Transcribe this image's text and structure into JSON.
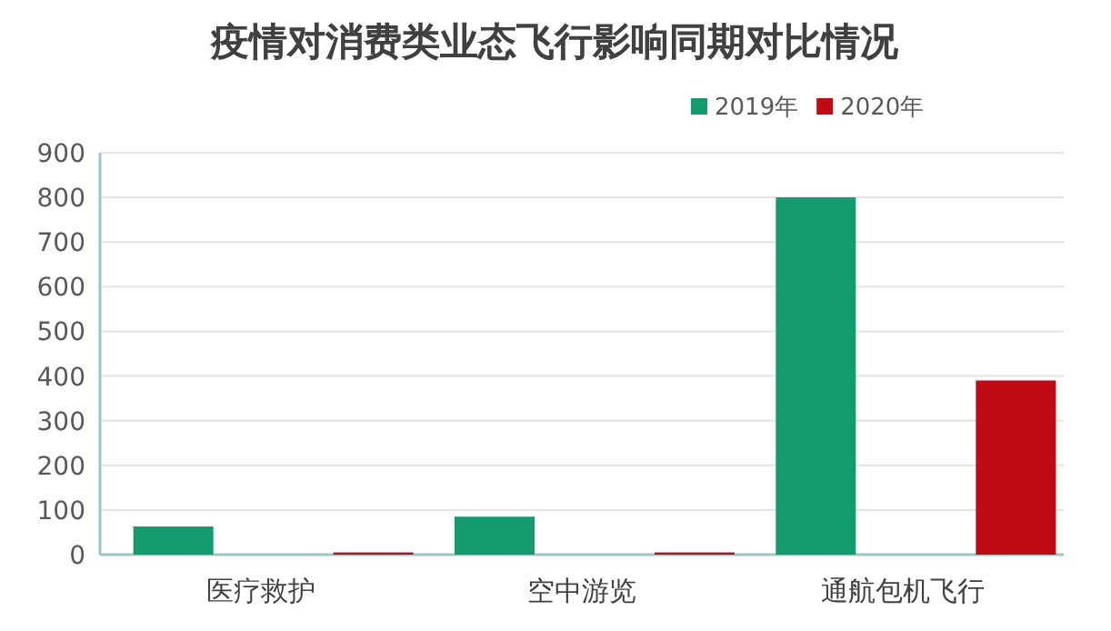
{
  "chart_data": {
    "type": "bar",
    "title": "疫情对消费类业态飞行影响同期对比情况",
    "categories": [
      "医疗救护",
      "空中游览",
      "通航包机飞行"
    ],
    "series": [
      {
        "name": "2019年",
        "color": "#139a6e",
        "values": [
          63,
          85,
          800
        ]
      },
      {
        "name": "2020年",
        "color": "#c00a14",
        "values": [
          5,
          5,
          390
        ]
      }
    ],
    "ylim": [
      0,
      900
    ],
    "yticks": [
      0,
      100,
      200,
      300,
      400,
      500,
      600,
      700,
      800,
      900
    ],
    "grid": "y",
    "legend": "top right"
  }
}
